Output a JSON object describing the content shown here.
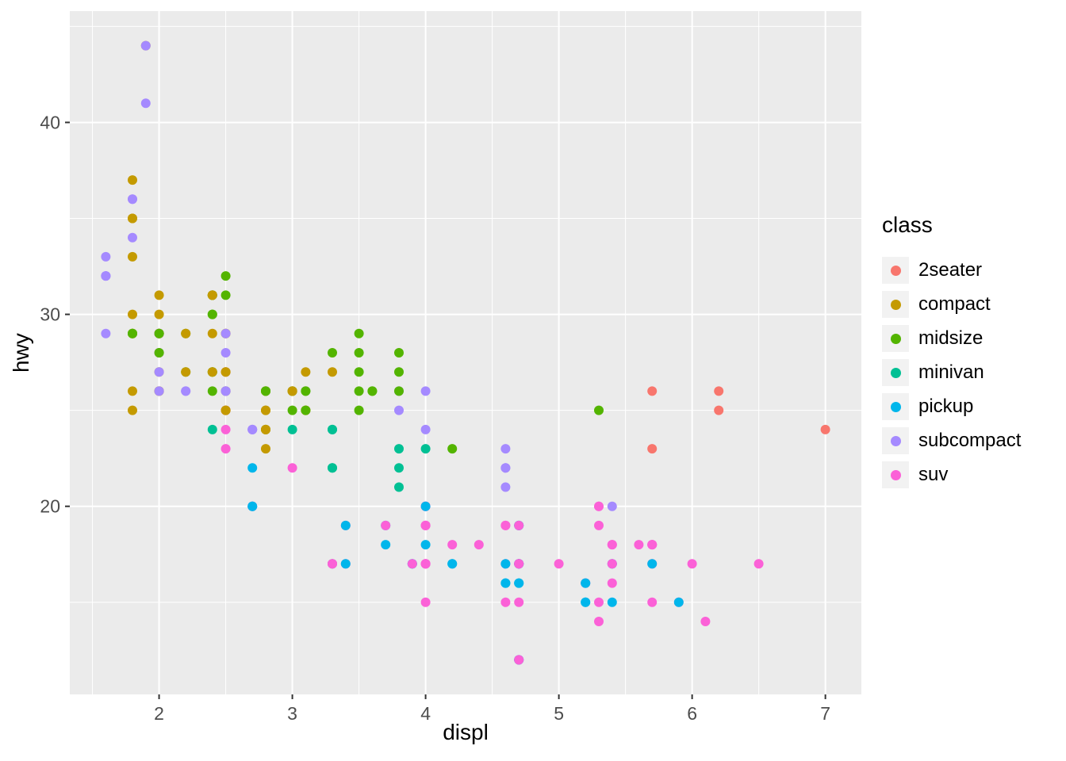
{
  "axes": {
    "x_title": "displ",
    "y_title": "hwy"
  },
  "legend": {
    "title": "class"
  },
  "chart_data": {
    "type": "scatter",
    "title": "",
    "xlabel": "displ",
    "ylabel": "hwy",
    "x_domain": [
      1.33,
      7.27
    ],
    "y_domain": [
      10.2,
      45.8
    ],
    "x_ticks": [
      2,
      3,
      4,
      5,
      6,
      7
    ],
    "y_ticks": [
      20,
      30,
      40
    ],
    "x_minor": [
      1.5,
      2.5,
      3.5,
      4.5,
      5.5,
      6.5
    ],
    "y_minor": [
      15,
      25,
      35,
      45
    ],
    "grid": true,
    "legend_position": "right",
    "legend_title": "class",
    "style": {
      "panel_fill": "#EBEBEB",
      "grid_color": "#FFFFFF",
      "tick_color": "#333333",
      "tick_label_color": "#4D4D4D",
      "point_radius": 6
    },
    "classes": [
      {
        "label": "2seater",
        "color": "#F8766D"
      },
      {
        "label": "compact",
        "color": "#C49A00"
      },
      {
        "label": "midsize",
        "color": "#53B400"
      },
      {
        "label": "minivan",
        "color": "#00C094"
      },
      {
        "label": "pickup",
        "color": "#00B6EB"
      },
      {
        "label": "subcompact",
        "color": "#A58AFF"
      },
      {
        "label": "suv",
        "color": "#FB61D7"
      }
    ],
    "points": [
      [
        1.8,
        29,
        1
      ],
      [
        1.8,
        29,
        1
      ],
      [
        2,
        31,
        1
      ],
      [
        2,
        30,
        1
      ],
      [
        2.8,
        26,
        1
      ],
      [
        2.8,
        26,
        1
      ],
      [
        3.1,
        27,
        1
      ],
      [
        1.8,
        26,
        1
      ],
      [
        1.8,
        25,
        1
      ],
      [
        2,
        28,
        1
      ],
      [
        2,
        27,
        1
      ],
      [
        2.8,
        25,
        1
      ],
      [
        2.8,
        25,
        1
      ],
      [
        3.1,
        25,
        1
      ],
      [
        3.1,
        25,
        1
      ],
      [
        2.8,
        24,
        2
      ],
      [
        3.1,
        25,
        2
      ],
      [
        4.2,
        23,
        2
      ],
      [
        5.3,
        20,
        6
      ],
      [
        5.3,
        15,
        6
      ],
      [
        5.3,
        20,
        6
      ],
      [
        5.7,
        17,
        6
      ],
      [
        6,
        17,
        6
      ],
      [
        5.7,
        26,
        0
      ],
      [
        5.7,
        23,
        0
      ],
      [
        6.2,
        26,
        0
      ],
      [
        6.2,
        25,
        0
      ],
      [
        7,
        24,
        0
      ],
      [
        5.3,
        19,
        6
      ],
      [
        5.3,
        14,
        6
      ],
      [
        5.7,
        15,
        6
      ],
      [
        6.5,
        17,
        6
      ],
      [
        2.4,
        27,
        2
      ],
      [
        2.4,
        30,
        2
      ],
      [
        3.1,
        26,
        2
      ],
      [
        3.5,
        29,
        2
      ],
      [
        3.6,
        26,
        2
      ],
      [
        2.4,
        24,
        3
      ],
      [
        3,
        24,
        3
      ],
      [
        3.3,
        22,
        3
      ],
      [
        3.3,
        22,
        3
      ],
      [
        3.3,
        24,
        3
      ],
      [
        3.3,
        24,
        3
      ],
      [
        3.3,
        17,
        3
      ],
      [
        3.8,
        22,
        3
      ],
      [
        3.8,
        21,
        3
      ],
      [
        3.8,
        23,
        3
      ],
      [
        4,
        23,
        3
      ],
      [
        3.7,
        19,
        4
      ],
      [
        3.7,
        18,
        4
      ],
      [
        3.9,
        17,
        4
      ],
      [
        3.9,
        17,
        4
      ],
      [
        4.7,
        19,
        4
      ],
      [
        4.7,
        19,
        4
      ],
      [
        4.7,
        12,
        4
      ],
      [
        5.2,
        16,
        4
      ],
      [
        5.2,
        15,
        4
      ],
      [
        3.9,
        17,
        6
      ],
      [
        4.7,
        17,
        6
      ],
      [
        4.7,
        12,
        6
      ],
      [
        4.7,
        17,
        6
      ],
      [
        5.2,
        16,
        6
      ],
      [
        5.7,
        18,
        6
      ],
      [
        5.9,
        15,
        6
      ],
      [
        4.7,
        16,
        4
      ],
      [
        4.7,
        12,
        4
      ],
      [
        4.7,
        17,
        4
      ],
      [
        4.7,
        17,
        4
      ],
      [
        4.7,
        16,
        4
      ],
      [
        4.7,
        17,
        4
      ],
      [
        5.2,
        15,
        4
      ],
      [
        5.2,
        16,
        4
      ],
      [
        5.7,
        17,
        4
      ],
      [
        5.9,
        15,
        4
      ],
      [
        4.6,
        17,
        6
      ],
      [
        5.4,
        17,
        6
      ],
      [
        5.4,
        18,
        6
      ],
      [
        4,
        17,
        6
      ],
      [
        4,
        17,
        6
      ],
      [
        4,
        17,
        6
      ],
      [
        4,
        19,
        6
      ],
      [
        4,
        19,
        6
      ],
      [
        4.6,
        19,
        6
      ],
      [
        4.2,
        17,
        4
      ],
      [
        4.2,
        17,
        4
      ],
      [
        4.6,
        16,
        4
      ],
      [
        4.6,
        16,
        4
      ],
      [
        4.6,
        17,
        4
      ],
      [
        5.4,
        15,
        4
      ],
      [
        5.4,
        17,
        4
      ],
      [
        3.8,
        26,
        5
      ],
      [
        3.8,
        25,
        5
      ],
      [
        4,
        26,
        5
      ],
      [
        4,
        24,
        5
      ],
      [
        4.6,
        21,
        5
      ],
      [
        4.6,
        22,
        5
      ],
      [
        4.6,
        23,
        5
      ],
      [
        4.6,
        22,
        5
      ],
      [
        5.4,
        20,
        5
      ],
      [
        1.6,
        33,
        5
      ],
      [
        1.6,
        32,
        5
      ],
      [
        1.6,
        32,
        5
      ],
      [
        1.6,
        29,
        5
      ],
      [
        1.6,
        32,
        5
      ],
      [
        1.8,
        34,
        5
      ],
      [
        1.8,
        36,
        5
      ],
      [
        1.8,
        36,
        5
      ],
      [
        2,
        29,
        5
      ],
      [
        2.4,
        26,
        2
      ],
      [
        2.4,
        27,
        2
      ],
      [
        2.4,
        30,
        2
      ],
      [
        2.4,
        31,
        2
      ],
      [
        2.5,
        26,
        2
      ],
      [
        2.5,
        26,
        2
      ],
      [
        3.3,
        28,
        2
      ],
      [
        2,
        26,
        5
      ],
      [
        2,
        29,
        5
      ],
      [
        2,
        28,
        5
      ],
      [
        2,
        27,
        5
      ],
      [
        2.7,
        24,
        5
      ],
      [
        2.7,
        24,
        5
      ],
      [
        2.7,
        24,
        5
      ],
      [
        3,
        22,
        6
      ],
      [
        3.7,
        19,
        6
      ],
      [
        4,
        20,
        6
      ],
      [
        4.7,
        17,
        6
      ],
      [
        4.7,
        12,
        6
      ],
      [
        4.7,
        19,
        6
      ],
      [
        5.7,
        18,
        6
      ],
      [
        6.1,
        14,
        6
      ],
      [
        4,
        15,
        6
      ],
      [
        4.2,
        18,
        6
      ],
      [
        4.4,
        18,
        6
      ],
      [
        4.6,
        15,
        6
      ],
      [
        5.4,
        17,
        6
      ],
      [
        5.4,
        16,
        6
      ],
      [
        5.4,
        18,
        6
      ],
      [
        4,
        17,
        6
      ],
      [
        4,
        19,
        6
      ],
      [
        4.6,
        19,
        6
      ],
      [
        5,
        17,
        6
      ],
      [
        2.4,
        29,
        1
      ],
      [
        2.4,
        27,
        1
      ],
      [
        2.5,
        31,
        2
      ],
      [
        2.5,
        32,
        2
      ],
      [
        3.5,
        27,
        2
      ],
      [
        3.5,
        26,
        2
      ],
      [
        3,
        26,
        2
      ],
      [
        3,
        25,
        2
      ],
      [
        3.5,
        25,
        2
      ],
      [
        3.3,
        17,
        6
      ],
      [
        3.3,
        17,
        6
      ],
      [
        4,
        20,
        6
      ],
      [
        5.6,
        18,
        6
      ],
      [
        3.1,
        26,
        2
      ],
      [
        3.8,
        26,
        2
      ],
      [
        3.8,
        27,
        2
      ],
      [
        3.8,
        28,
        2
      ],
      [
        5.3,
        25,
        2
      ],
      [
        2.5,
        25,
        6
      ],
      [
        2.5,
        24,
        6
      ],
      [
        2.5,
        27,
        6
      ],
      [
        2.5,
        25,
        6
      ],
      [
        2.5,
        26,
        6
      ],
      [
        2.5,
        23,
        6
      ],
      [
        2.2,
        26,
        5
      ],
      [
        2.2,
        26,
        5
      ],
      [
        2.5,
        26,
        5
      ],
      [
        2.5,
        26,
        5
      ],
      [
        2.5,
        25,
        1
      ],
      [
        2.5,
        27,
        1
      ],
      [
        2.5,
        25,
        1
      ],
      [
        2.5,
        27,
        1
      ],
      [
        2.7,
        20,
        6
      ],
      [
        2.7,
        20,
        6
      ],
      [
        3.4,
        19,
        6
      ],
      [
        3.4,
        17,
        6
      ],
      [
        4,
        20,
        6
      ],
      [
        4.7,
        17,
        6
      ],
      [
        2.2,
        29,
        2
      ],
      [
        2.2,
        27,
        2
      ],
      [
        2.4,
        31,
        2
      ],
      [
        2.4,
        31,
        2
      ],
      [
        3,
        26,
        2
      ],
      [
        3,
        26,
        2
      ],
      [
        3.5,
        28,
        2
      ],
      [
        2.2,
        27,
        1
      ],
      [
        2.2,
        29,
        1
      ],
      [
        2.4,
        31,
        1
      ],
      [
        2.4,
        31,
        1
      ],
      [
        3,
        26,
        1
      ],
      [
        3,
        26,
        1
      ],
      [
        3.3,
        27,
        1
      ],
      [
        1.8,
        30,
        1
      ],
      [
        1.8,
        33,
        1
      ],
      [
        1.8,
        35,
        1
      ],
      [
        1.8,
        37,
        1
      ],
      [
        1.8,
        35,
        1
      ],
      [
        4.7,
        15,
        6
      ],
      [
        5.7,
        18,
        6
      ],
      [
        2.7,
        20,
        4
      ],
      [
        2.7,
        20,
        4
      ],
      [
        2.7,
        22,
        4
      ],
      [
        3.4,
        17,
        4
      ],
      [
        3.4,
        19,
        4
      ],
      [
        4,
        18,
        4
      ],
      [
        4,
        20,
        4
      ],
      [
        2,
        29,
        1
      ],
      [
        2,
        26,
        1
      ],
      [
        2,
        29,
        1
      ],
      [
        2,
        29,
        1
      ],
      [
        2.8,
        24,
        1
      ],
      [
        1.9,
        44,
        1
      ],
      [
        2,
        29,
        1
      ],
      [
        2,
        26,
        1
      ],
      [
        2,
        29,
        1
      ],
      [
        2,
        29,
        1
      ],
      [
        2.5,
        29,
        1
      ],
      [
        2.5,
        29,
        1
      ],
      [
        2.8,
        23,
        1
      ],
      [
        2.8,
        24,
        1
      ],
      [
        1.9,
        44,
        5
      ],
      [
        1.9,
        41,
        5
      ],
      [
        2,
        29,
        5
      ],
      [
        2,
        26,
        5
      ],
      [
        2.5,
        28,
        5
      ],
      [
        2.5,
        29,
        5
      ],
      [
        1.8,
        29,
        2
      ],
      [
        1.8,
        29,
        2
      ],
      [
        2,
        28,
        2
      ],
      [
        2,
        29,
        2
      ],
      [
        2.8,
        26,
        2
      ],
      [
        2.8,
        26,
        2
      ],
      [
        3.6,
        26,
        2
      ]
    ]
  }
}
